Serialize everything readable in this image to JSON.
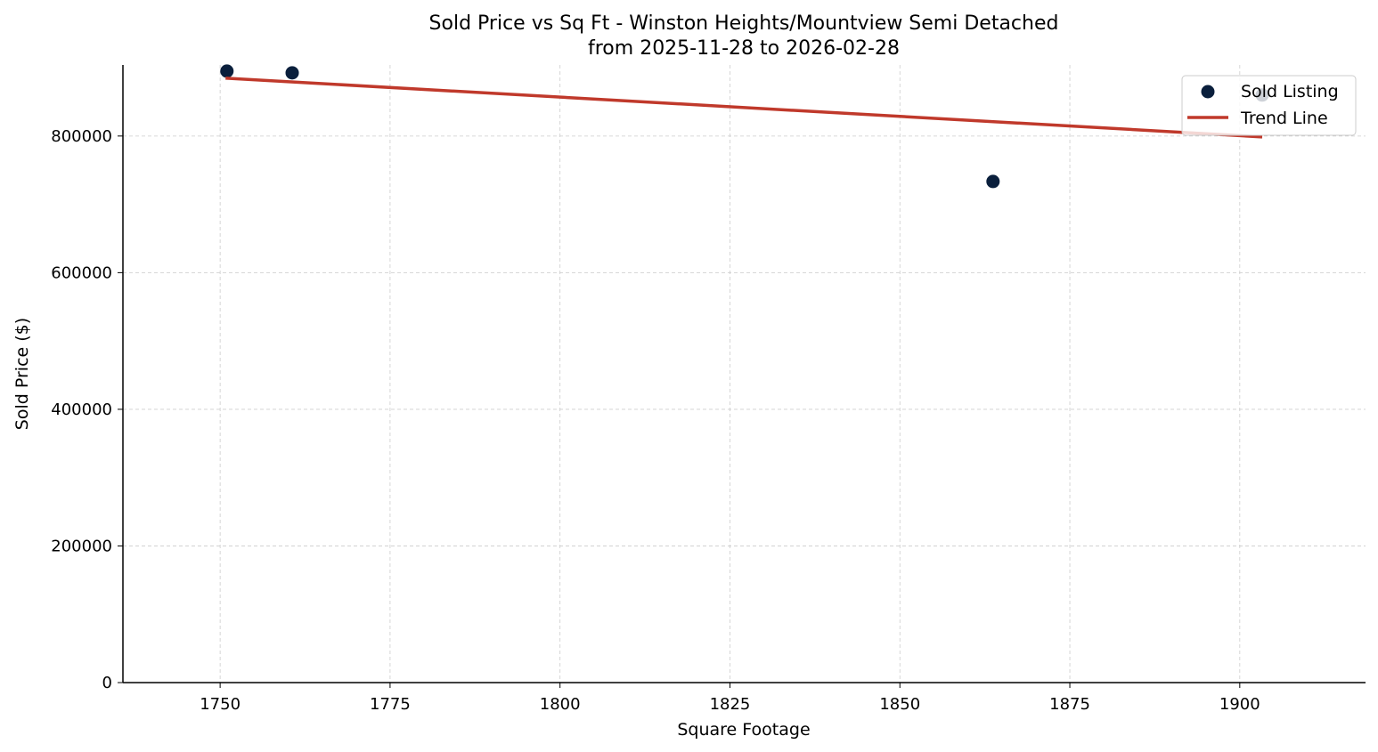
{
  "chart_data": {
    "type": "scatter",
    "title": "Sold Price vs Sq Ft - Winston Heights/Mountview Semi Detached",
    "subtitle": "from 2025-11-28 to 2026-02-28",
    "xlabel": "Square Footage",
    "ylabel": "Sold Price ($)",
    "xlim": [
      1735.7,
      1918.5
    ],
    "ylim": [
      0,
      904000
    ],
    "xticks": [
      1750,
      1775,
      1800,
      1825,
      1850,
      1875,
      1900
    ],
    "yticks": [
      0,
      200000,
      400000,
      600000,
      800000
    ],
    "grid": true,
    "legend_placement": "top-right",
    "series": [
      {
        "name": "Sold Listing",
        "kind": "scatter",
        "color": "#0a1f3c",
        "points": [
          [
            1751,
            895000
          ],
          [
            1760.6,
            892500
          ],
          [
            1863.7,
            733500
          ],
          [
            1903.3,
            860000
          ]
        ]
      },
      {
        "name": "Trend Line",
        "kind": "line",
        "color": "#c0392b",
        "points": [
          [
            1750.8,
            884700
          ],
          [
            1903.3,
            798700
          ]
        ]
      }
    ]
  }
}
